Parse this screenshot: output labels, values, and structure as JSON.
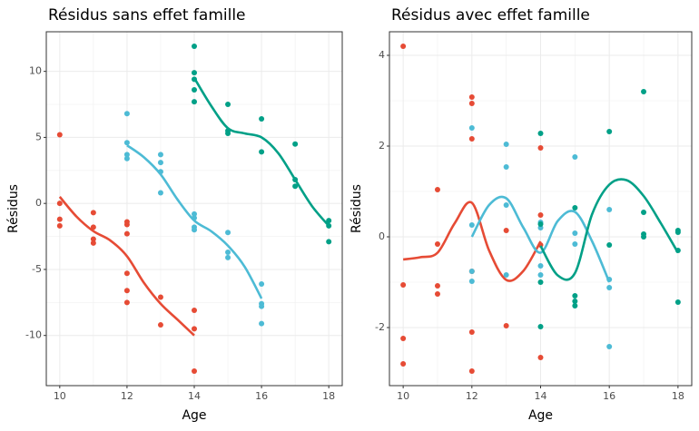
{
  "chart_data": [
    {
      "type": "scatter",
      "title": "Résidus sans effet famille",
      "x_label": "Age",
      "y_label": "Résidus",
      "xlim": [
        9.6,
        18.4
      ],
      "ylim": [
        -13.8,
        13.0
      ],
      "xticks": [
        10,
        12,
        14,
        16,
        18
      ],
      "yticks": [
        -10,
        -5,
        0,
        5,
        10
      ],
      "grid": true,
      "series": [
        {
          "color": "#e64b35",
          "x": [
            10,
            10,
            10,
            10,
            11,
            11,
            11,
            11,
            12,
            12,
            12,
            12,
            12,
            12,
            13,
            13,
            14,
            14,
            14
          ],
          "values": [
            5.2,
            0,
            -1.2,
            -1.7,
            -0.7,
            -1.8,
            -2.7,
            -3.0,
            -1.4,
            -1.6,
            -2.3,
            -5.3,
            -6.6,
            -7.5,
            -7.1,
            -9.2,
            -8.1,
            -9.5,
            -12.7
          ],
          "smooth": {
            "x": [
              10,
              10.5,
              11,
              11.5,
              12,
              12.5,
              13,
              13.5,
              14
            ],
            "values": [
              0.5,
              -1.0,
              -2.1,
              -2.8,
              -4.0,
              -6.0,
              -7.6,
              -8.8,
              -10.0
            ]
          }
        },
        {
          "color": "#4dbbd5",
          "x": [
            12,
            12,
            12,
            12,
            13,
            13,
            13,
            13,
            14,
            14,
            14,
            14,
            15,
            15,
            15,
            16,
            16,
            16,
            16
          ],
          "values": [
            6.8,
            4.6,
            3.7,
            3.4,
            3.7,
            3.1,
            2.4,
            0.8,
            -0.8,
            -1.1,
            -1.8,
            -2.0,
            -2.2,
            -3.7,
            -4.1,
            -6.1,
            -7.6,
            -7.8,
            -9.1
          ],
          "smooth": {
            "x": [
              12,
              12.5,
              13,
              13.5,
              14,
              14.5,
              15,
              15.5,
              16
            ],
            "values": [
              4.4,
              3.5,
              2.2,
              0.3,
              -1.3,
              -2.1,
              -3.2,
              -4.8,
              -7.2
            ]
          }
        },
        {
          "color": "#00a087",
          "x": [
            14,
            14,
            14,
            14,
            14,
            15,
            15,
            15,
            16,
            16,
            17,
            17,
            17,
            18,
            18,
            18
          ],
          "values": [
            11.9,
            9.9,
            9.4,
            8.6,
            7.7,
            7.5,
            5.5,
            5.3,
            6.4,
            3.9,
            4.5,
            1.8,
            1.3,
            -1.3,
            -1.7,
            -2.9
          ],
          "smooth": {
            "x": [
              14,
              14.5,
              15,
              15.5,
              16,
              16.5,
              17,
              17.5,
              18
            ],
            "values": [
              9.5,
              7.4,
              5.7,
              5.3,
              5.0,
              3.8,
              1.8,
              -0.2,
              -1.7
            ]
          }
        }
      ]
    },
    {
      "type": "scatter",
      "title": "Résidus avec effet famille",
      "x_label": "Age",
      "y_label": "Résidus",
      "xlim": [
        9.6,
        18.4
      ],
      "ylim": [
        -3.28,
        4.52
      ],
      "xticks": [
        10,
        12,
        14,
        16,
        18
      ],
      "yticks": [
        -2,
        0,
        2,
        4
      ],
      "grid": true,
      "series": [
        {
          "color": "#e64b35",
          "x": [
            10,
            10,
            10,
            10,
            11,
            11,
            11,
            11,
            12,
            12,
            12,
            12,
            12,
            12,
            13,
            13,
            14,
            14,
            14,
            14
          ],
          "values": [
            4.2,
            -1.06,
            -2.24,
            -2.8,
            1.04,
            -0.16,
            -1.08,
            -1.26,
            3.08,
            2.94,
            2.16,
            -0.76,
            -2.1,
            -2.96,
            0.14,
            -1.96,
            1.96,
            0.48,
            -0.18,
            -2.66
          ],
          "smooth": {
            "x": [
              10,
              10.5,
              11,
              11.5,
              12,
              12.5,
              13,
              13.5,
              14
            ],
            "values": [
              -0.5,
              -0.45,
              -0.35,
              0.3,
              0.75,
              -0.3,
              -0.95,
              -0.75,
              -0.1
            ]
          }
        },
        {
          "color": "#4dbbd5",
          "x": [
            12,
            12,
            12,
            12,
            13,
            13,
            13,
            13,
            14,
            14,
            14,
            14,
            15,
            15,
            15,
            16,
            16,
            16,
            16
          ],
          "values": [
            2.4,
            0.26,
            -0.76,
            -0.98,
            2.04,
            1.54,
            0.7,
            -0.84,
            0.32,
            0.2,
            -0.64,
            -0.84,
            1.76,
            0.08,
            -0.16,
            0.6,
            -0.94,
            -1.12,
            -2.42
          ],
          "smooth": {
            "x": [
              12,
              12.5,
              13,
              13.5,
              14,
              14.5,
              15,
              15.5,
              16
            ],
            "values": [
              0,
              0.7,
              0.85,
              0.2,
              -0.35,
              0.35,
              0.55,
              -0.1,
              -1.0
            ]
          }
        },
        {
          "color": "#00a087",
          "x": [
            14,
            14,
            14,
            14,
            15,
            15,
            15,
            15,
            16,
            16,
            17,
            17,
            17,
            17,
            18,
            18,
            18,
            18
          ],
          "values": [
            2.28,
            0.28,
            -1.0,
            -1.98,
            0.64,
            -1.3,
            -1.42,
            -1.52,
            2.32,
            -0.18,
            3.2,
            0.54,
            0.06,
            0,
            0.14,
            0.1,
            -0.3,
            -1.44
          ],
          "smooth": {
            "x": [
              14,
              14.5,
              15,
              15.5,
              16,
              16.5,
              17,
              17.5,
              18
            ],
            "values": [
              -0.2,
              -0.85,
              -0.8,
              0.5,
              1.15,
              1.25,
              0.9,
              0.3,
              -0.35
            ]
          }
        }
      ]
    }
  ]
}
